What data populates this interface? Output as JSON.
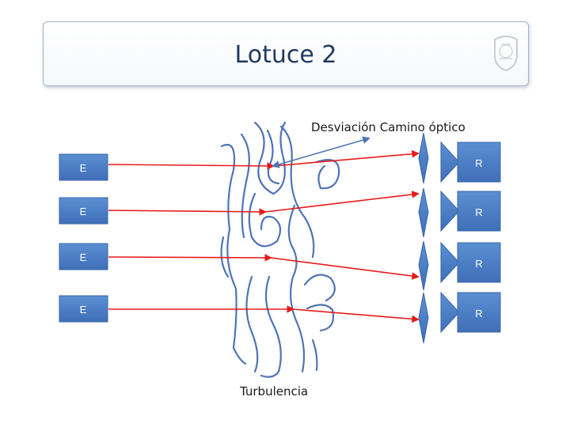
{
  "title": "Lotuce 2",
  "annotations": {
    "deviation": "Desviación Camino óptico",
    "turbulence": "Turbulencia"
  },
  "emitter_label": "E",
  "receiver_label": "R",
  "colors": {
    "title": "#1f3a5f",
    "box_fill": "#4f81bd",
    "beam": "#e51b1b",
    "turbulence": "#4f74b5"
  },
  "icons": [
    "university-seal-icon",
    "lens-icon",
    "collector-cone-icon"
  ]
}
